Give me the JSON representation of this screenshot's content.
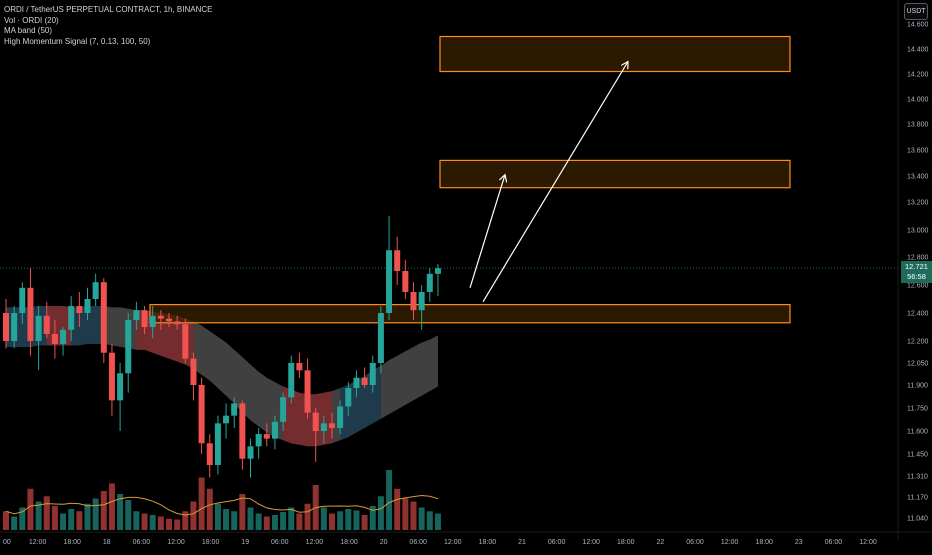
{
  "legend": {
    "symbol_line": "ORDI / TetherUS PERPETUAL CONTRACT, 1h, BINANCE",
    "indicators": [
      "Vol · ORDI (20)",
      "MA band (50)",
      "High Momentum Signal (7, 0.13, 100, 50)"
    ]
  },
  "currency": "USDT",
  "last_price": {
    "price": "12.721",
    "countdown": "56:58"
  },
  "colors": {
    "up": "#26a69a",
    "down": "#ef5350",
    "zone_border": "#ff8c1a",
    "zone_fill": "#3a2200",
    "arrow": "#ffffff",
    "band_gray": "#555555",
    "band_red": "#7a2a2e",
    "band_blue": "#1c3a4d",
    "volume_ma": "#d89b3a",
    "badge": "#1e6b5c"
  },
  "chart_data": {
    "type": "candlestick",
    "timeframe": "1h",
    "y_ticks": [
      "14.600",
      "14.400",
      "14.200",
      "14.000",
      "13.800",
      "13.600",
      "13.400",
      "13.200",
      "13.000",
      "12.800",
      "12.600",
      "12.400",
      "12.200",
      "12.050",
      "11.900",
      "11.750",
      "11.600",
      "11.450",
      "11.310",
      "11.170",
      "11.040"
    ],
    "x_ticks": [
      "00",
      "12:00",
      "18:00",
      "18",
      "06:00",
      "12:00",
      "18:00",
      "19",
      "06:00",
      "12:00",
      "18:00",
      "20",
      "06:00",
      "12:00",
      "18:00",
      "21",
      "06:00",
      "12:00",
      "18:00",
      "22",
      "06:00",
      "12:00",
      "18:00",
      "23",
      "06:00",
      "12:00"
    ],
    "zones": [
      {
        "low": 14.22,
        "high": 14.5
      },
      {
        "low": 13.31,
        "high": 13.52
      },
      {
        "low": 12.33,
        "high": 12.46
      }
    ],
    "arrows": [
      {
        "from_index": 53,
        "from_price": 12.58,
        "to_index": 57,
        "to_price": 13.41
      },
      {
        "from_index": 54,
        "from_price": 12.48,
        "to_index": 71,
        "to_price": 14.3
      }
    ],
    "candles": [
      {
        "o": 12.4,
        "h": 12.5,
        "l": 12.15,
        "c": 12.2,
        "v": 0.25
      },
      {
        "o": 12.2,
        "h": 12.45,
        "l": 12.15,
        "c": 12.4,
        "v": 0.18
      },
      {
        "o": 12.4,
        "h": 12.62,
        "l": 12.32,
        "c": 12.58,
        "v": 0.3
      },
      {
        "o": 12.58,
        "h": 12.72,
        "l": 12.1,
        "c": 12.2,
        "v": 0.55
      },
      {
        "o": 12.2,
        "h": 12.45,
        "l": 12.0,
        "c": 12.38,
        "v": 0.38
      },
      {
        "o": 12.38,
        "h": 12.48,
        "l": 12.22,
        "c": 12.25,
        "v": 0.45
      },
      {
        "o": 12.25,
        "h": 12.35,
        "l": 12.08,
        "c": 12.18,
        "v": 0.32
      },
      {
        "o": 12.18,
        "h": 12.3,
        "l": 12.1,
        "c": 12.28,
        "v": 0.22
      },
      {
        "o": 12.28,
        "h": 12.52,
        "l": 12.2,
        "c": 12.45,
        "v": 0.28
      },
      {
        "o": 12.45,
        "h": 12.55,
        "l": 12.3,
        "c": 12.4,
        "v": 0.25
      },
      {
        "o": 12.4,
        "h": 12.58,
        "l": 12.35,
        "c": 12.5,
        "v": 0.35
      },
      {
        "o": 12.5,
        "h": 12.68,
        "l": 12.45,
        "c": 12.62,
        "v": 0.42
      },
      {
        "o": 12.62,
        "h": 12.65,
        "l": 12.05,
        "c": 12.12,
        "v": 0.52
      },
      {
        "o": 12.12,
        "h": 12.18,
        "l": 11.7,
        "c": 11.8,
        "v": 0.62
      },
      {
        "o": 11.8,
        "h": 12.05,
        "l": 11.6,
        "c": 11.98,
        "v": 0.48
      },
      {
        "o": 11.98,
        "h": 12.4,
        "l": 11.85,
        "c": 12.35,
        "v": 0.4
      },
      {
        "o": 12.35,
        "h": 12.48,
        "l": 12.28,
        "c": 12.42,
        "v": 0.25
      },
      {
        "o": 12.42,
        "h": 12.45,
        "l": 12.25,
        "c": 12.3,
        "v": 0.22
      },
      {
        "o": 12.3,
        "h": 12.45,
        "l": 12.22,
        "c": 12.38,
        "v": 0.2
      },
      {
        "o": 12.38,
        "h": 12.42,
        "l": 12.28,
        "c": 12.36,
        "v": 0.18
      },
      {
        "o": 12.36,
        "h": 12.4,
        "l": 12.3,
        "c": 12.34,
        "v": 0.15
      },
      {
        "o": 12.34,
        "h": 12.38,
        "l": 12.28,
        "c": 12.32,
        "v": 0.14
      },
      {
        "o": 12.32,
        "h": 12.36,
        "l": 12.05,
        "c": 12.08,
        "v": 0.25
      },
      {
        "o": 12.08,
        "h": 12.12,
        "l": 11.8,
        "c": 11.9,
        "v": 0.38
      },
      {
        "o": 11.9,
        "h": 11.95,
        "l": 11.45,
        "c": 11.52,
        "v": 0.7
      },
      {
        "o": 11.52,
        "h": 11.58,
        "l": 11.3,
        "c": 11.38,
        "v": 0.55
      },
      {
        "o": 11.38,
        "h": 11.7,
        "l": 11.32,
        "c": 11.65,
        "v": 0.35
      },
      {
        "o": 11.65,
        "h": 11.78,
        "l": 11.55,
        "c": 11.7,
        "v": 0.28
      },
      {
        "o": 11.7,
        "h": 11.82,
        "l": 11.62,
        "c": 11.78,
        "v": 0.25
      },
      {
        "o": 11.78,
        "h": 11.8,
        "l": 11.35,
        "c": 11.42,
        "v": 0.48
      },
      {
        "o": 11.42,
        "h": 11.55,
        "l": 11.3,
        "c": 11.5,
        "v": 0.3
      },
      {
        "o": 11.5,
        "h": 11.62,
        "l": 11.42,
        "c": 11.58,
        "v": 0.22
      },
      {
        "o": 11.58,
        "h": 11.65,
        "l": 11.5,
        "c": 11.55,
        "v": 0.18
      },
      {
        "o": 11.55,
        "h": 11.7,
        "l": 11.48,
        "c": 11.66,
        "v": 0.2
      },
      {
        "o": 11.66,
        "h": 11.85,
        "l": 11.6,
        "c": 11.82,
        "v": 0.24
      },
      {
        "o": 11.82,
        "h": 12.1,
        "l": 11.78,
        "c": 12.05,
        "v": 0.3
      },
      {
        "o": 12.05,
        "h": 12.12,
        "l": 11.95,
        "c": 12.0,
        "v": 0.22
      },
      {
        "o": 12.0,
        "h": 12.08,
        "l": 11.68,
        "c": 11.72,
        "v": 0.35
      },
      {
        "o": 11.72,
        "h": 11.75,
        "l": 11.4,
        "c": 11.6,
        "v": 0.6
      },
      {
        "o": 11.6,
        "h": 11.7,
        "l": 11.52,
        "c": 11.65,
        "v": 0.3
      },
      {
        "o": 11.65,
        "h": 11.72,
        "l": 11.55,
        "c": 11.62,
        "v": 0.22
      },
      {
        "o": 11.62,
        "h": 11.8,
        "l": 11.58,
        "c": 11.76,
        "v": 0.25
      },
      {
        "o": 11.76,
        "h": 11.92,
        "l": 11.7,
        "c": 11.88,
        "v": 0.28
      },
      {
        "o": 11.88,
        "h": 12.0,
        "l": 11.82,
        "c": 11.95,
        "v": 0.26
      },
      {
        "o": 11.95,
        "h": 12.02,
        "l": 11.88,
        "c": 11.9,
        "v": 0.2
      },
      {
        "o": 11.9,
        "h": 12.1,
        "l": 11.85,
        "c": 12.05,
        "v": 0.32
      },
      {
        "o": 12.05,
        "h": 12.45,
        "l": 11.98,
        "c": 12.4,
        "v": 0.45
      },
      {
        "o": 12.4,
        "h": 13.1,
        "l": 12.35,
        "c": 12.85,
        "v": 0.8
      },
      {
        "o": 12.85,
        "h": 12.95,
        "l": 12.6,
        "c": 12.7,
        "v": 0.55
      },
      {
        "o": 12.7,
        "h": 12.78,
        "l": 12.5,
        "c": 12.55,
        "v": 0.42
      },
      {
        "o": 12.55,
        "h": 12.62,
        "l": 12.35,
        "c": 12.42,
        "v": 0.38
      },
      {
        "o": 12.42,
        "h": 12.6,
        "l": 12.28,
        "c": 12.55,
        "v": 0.3
      },
      {
        "o": 12.55,
        "h": 12.72,
        "l": 12.48,
        "c": 12.68,
        "v": 0.25
      },
      {
        "o": 12.68,
        "h": 12.75,
        "l": 12.52,
        "c": 12.72,
        "v": 0.22
      }
    ],
    "band": {
      "upper": [
        12.44,
        12.44,
        12.44,
        12.44,
        12.45,
        12.45,
        12.45,
        12.45,
        12.44,
        12.44,
        12.45,
        12.45,
        12.45,
        12.44,
        12.44,
        12.43,
        12.42,
        12.42,
        12.41,
        12.4,
        12.39,
        12.38,
        12.36,
        12.34,
        12.31,
        12.27,
        12.23,
        12.19,
        12.14,
        12.09,
        12.04,
        11.99,
        11.95,
        11.92,
        11.89,
        11.87,
        11.85,
        11.84,
        11.84,
        11.85,
        11.86,
        11.88,
        11.9,
        11.93,
        11.96,
        12.0,
        12.03,
        12.07,
        12.1,
        12.13,
        12.16,
        12.19,
        12.21,
        12.24
      ],
      "lower": [
        12.16,
        12.16,
        12.16,
        12.16,
        12.17,
        12.17,
        12.17,
        12.17,
        12.17,
        12.17,
        12.18,
        12.18,
        12.18,
        12.17,
        12.16,
        12.15,
        12.14,
        12.14,
        12.12,
        12.1,
        12.08,
        12.06,
        12.04,
        12.01,
        11.97,
        11.93,
        11.88,
        11.83,
        11.78,
        11.72,
        11.67,
        11.63,
        11.59,
        11.56,
        11.54,
        11.52,
        11.51,
        11.5,
        11.5,
        11.51,
        11.52,
        11.54,
        11.56,
        11.59,
        11.62,
        11.65,
        11.68,
        11.71,
        11.74,
        11.77,
        11.8,
        11.83,
        11.86,
        11.89
      ]
    }
  }
}
